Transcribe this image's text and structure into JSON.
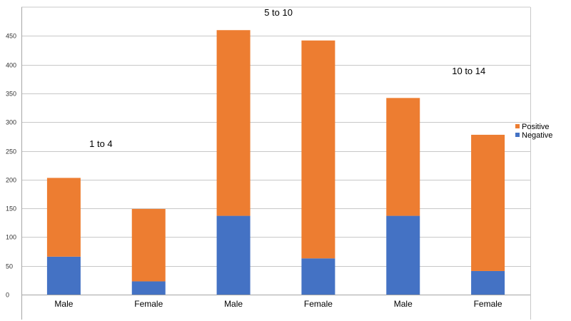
{
  "chart_data": {
    "type": "bar",
    "stacked": true,
    "categories": [
      "Male",
      "Female",
      "Male",
      "Female",
      "Male",
      "Female"
    ],
    "groups": [
      {
        "label": "1 to 4",
        "categories": [
          0,
          1
        ]
      },
      {
        "label": "5 to 10",
        "categories": [
          2,
          3
        ]
      },
      {
        "label": "10 to 14",
        "categories": [
          4,
          5
        ]
      }
    ],
    "series": [
      {
        "name": "Negative",
        "color": "#4472C4",
        "values": [
          66,
          23,
          137,
          63,
          137,
          41
        ]
      },
      {
        "name": "Positive",
        "color": "#ED7D31",
        "values": [
          137,
          126,
          323,
          379,
          205,
          237
        ]
      }
    ],
    "totals": [
      203,
      149,
      460,
      442,
      342,
      278
    ],
    "ylim": [
      0,
      500
    ],
    "yticks": [
      0,
      50,
      100,
      150,
      200,
      250,
      300,
      350,
      400,
      450
    ],
    "grid": true,
    "legend": "right",
    "title": "",
    "xlabel": "",
    "ylabel": ""
  }
}
